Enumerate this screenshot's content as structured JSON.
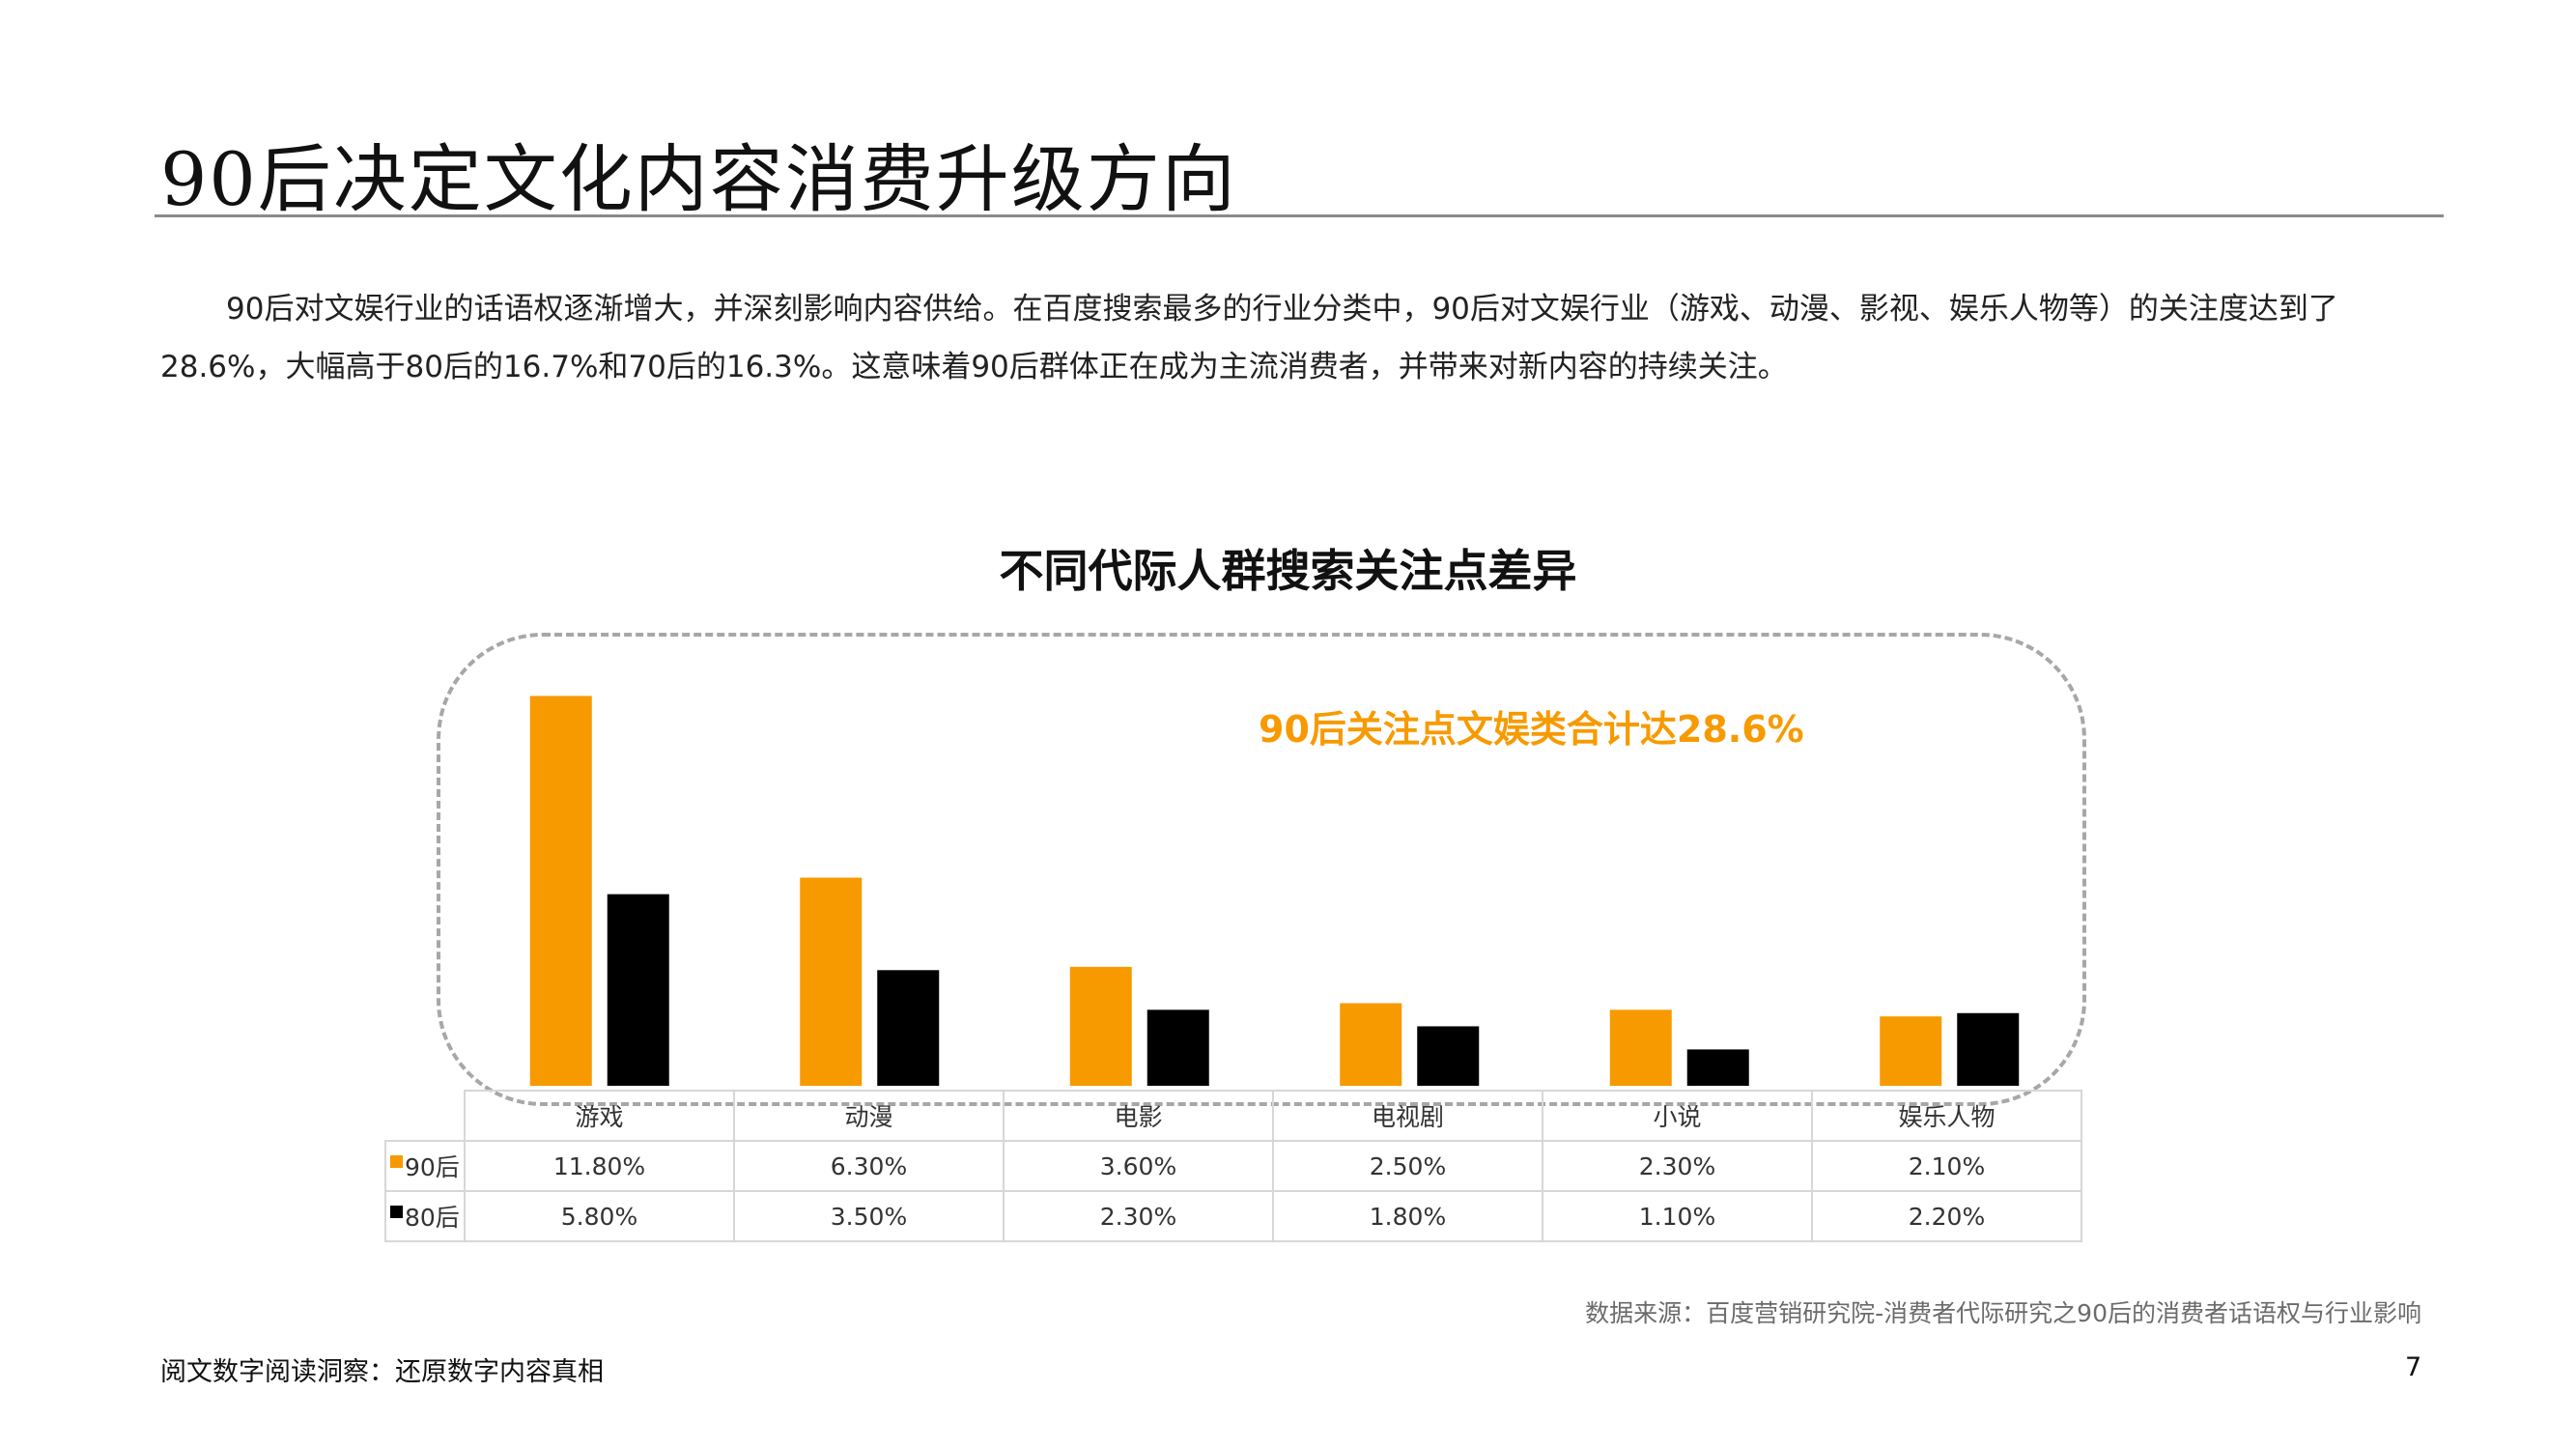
{
  "page": {
    "title": "90后决定文化内容消费升级方向",
    "intro": "90后对文娱行业的话语权逐渐增大，并深刻影响内容供给。在百度搜索最多的行业分类中，90后对文娱行业（游戏、动漫、影视、娱乐人物等）的关注度达到了28.6%，大幅高于80后的16.7%和70后的16.3%。这意味着90后群体正在成为主流消费者，并带来对新内容的持续关注。",
    "callout": "90后关注点文娱类合计达28.6%",
    "source": "数据来源：百度营销研究院-消费者代际研究之90后的消费者话语权与行业影响",
    "footer": "阅文数字阅读洞察：还原数字内容真相",
    "page_number": "7"
  },
  "chart_data": {
    "type": "bar",
    "title": "不同代际人群搜索关注点差异",
    "categories": [
      "游戏",
      "动漫",
      "电影",
      "电视剧",
      "小说",
      "娱乐人物"
    ],
    "series": [
      {
        "name": "90后",
        "color": "#f79a00",
        "values": [
          11.8,
          6.3,
          3.6,
          2.5,
          2.3,
          2.1
        ],
        "labels": [
          "11.80%",
          "6.30%",
          "3.60%",
          "2.50%",
          "2.30%",
          "2.10%"
        ]
      },
      {
        "name": "80后",
        "color": "#000000",
        "values": [
          5.8,
          3.5,
          2.3,
          1.8,
          1.1,
          2.2
        ],
        "labels": [
          "5.80%",
          "3.50%",
          "2.30%",
          "1.80%",
          "1.10%",
          "2.20%"
        ]
      }
    ],
    "ylim": [
      0,
      12
    ],
    "grid": false,
    "legend": "data-table-left"
  }
}
